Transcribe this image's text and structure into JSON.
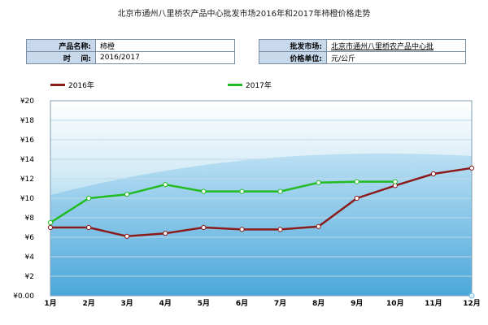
{
  "page_title": "北京市通州八里桥农产品中心批发市场2016年和2017年柿橙价格走势",
  "info": {
    "product_name_label": "产品名称:",
    "product_name_value": "柿橙",
    "period_label": "时    间:",
    "period_value": "2016/2017",
    "market_label": "批发市场:",
    "market_value": "北京市通州八里桥农产品中心批",
    "unit_label": "价格单位:",
    "unit_value": "元/公斤"
  },
  "colors": {
    "s2016": "#8b1a1a",
    "s2017": "#22bb22"
  },
  "chart_data": {
    "type": "line",
    "title": "北京市通州八里桥农产品中心批发市场2016年和2017年柿橙价格走势",
    "categories": [
      "1月",
      "2月",
      "3月",
      "4月",
      "5月",
      "6月",
      "7月",
      "8月",
      "9月",
      "10月",
      "11月",
      "12月"
    ],
    "y_ticks": [
      "¥0.00",
      "¥2",
      "¥4",
      "¥6",
      "¥8",
      "¥10",
      "¥12",
      "¥14",
      "¥16",
      "¥18",
      "¥20"
    ],
    "ylim": [
      0,
      20
    ],
    "series": [
      {
        "name": "2016年",
        "values": [
          7.0,
          7.0,
          6.1,
          6.4,
          7.0,
          6.8,
          6.8,
          7.1,
          10.0,
          11.3,
          12.5,
          13.1
        ]
      },
      {
        "name": "2017年",
        "values": [
          7.5,
          10.0,
          10.4,
          11.4,
          10.7,
          10.7,
          10.7,
          11.6,
          11.7,
          11.7,
          null,
          null
        ]
      }
    ],
    "legend_position": "top"
  }
}
